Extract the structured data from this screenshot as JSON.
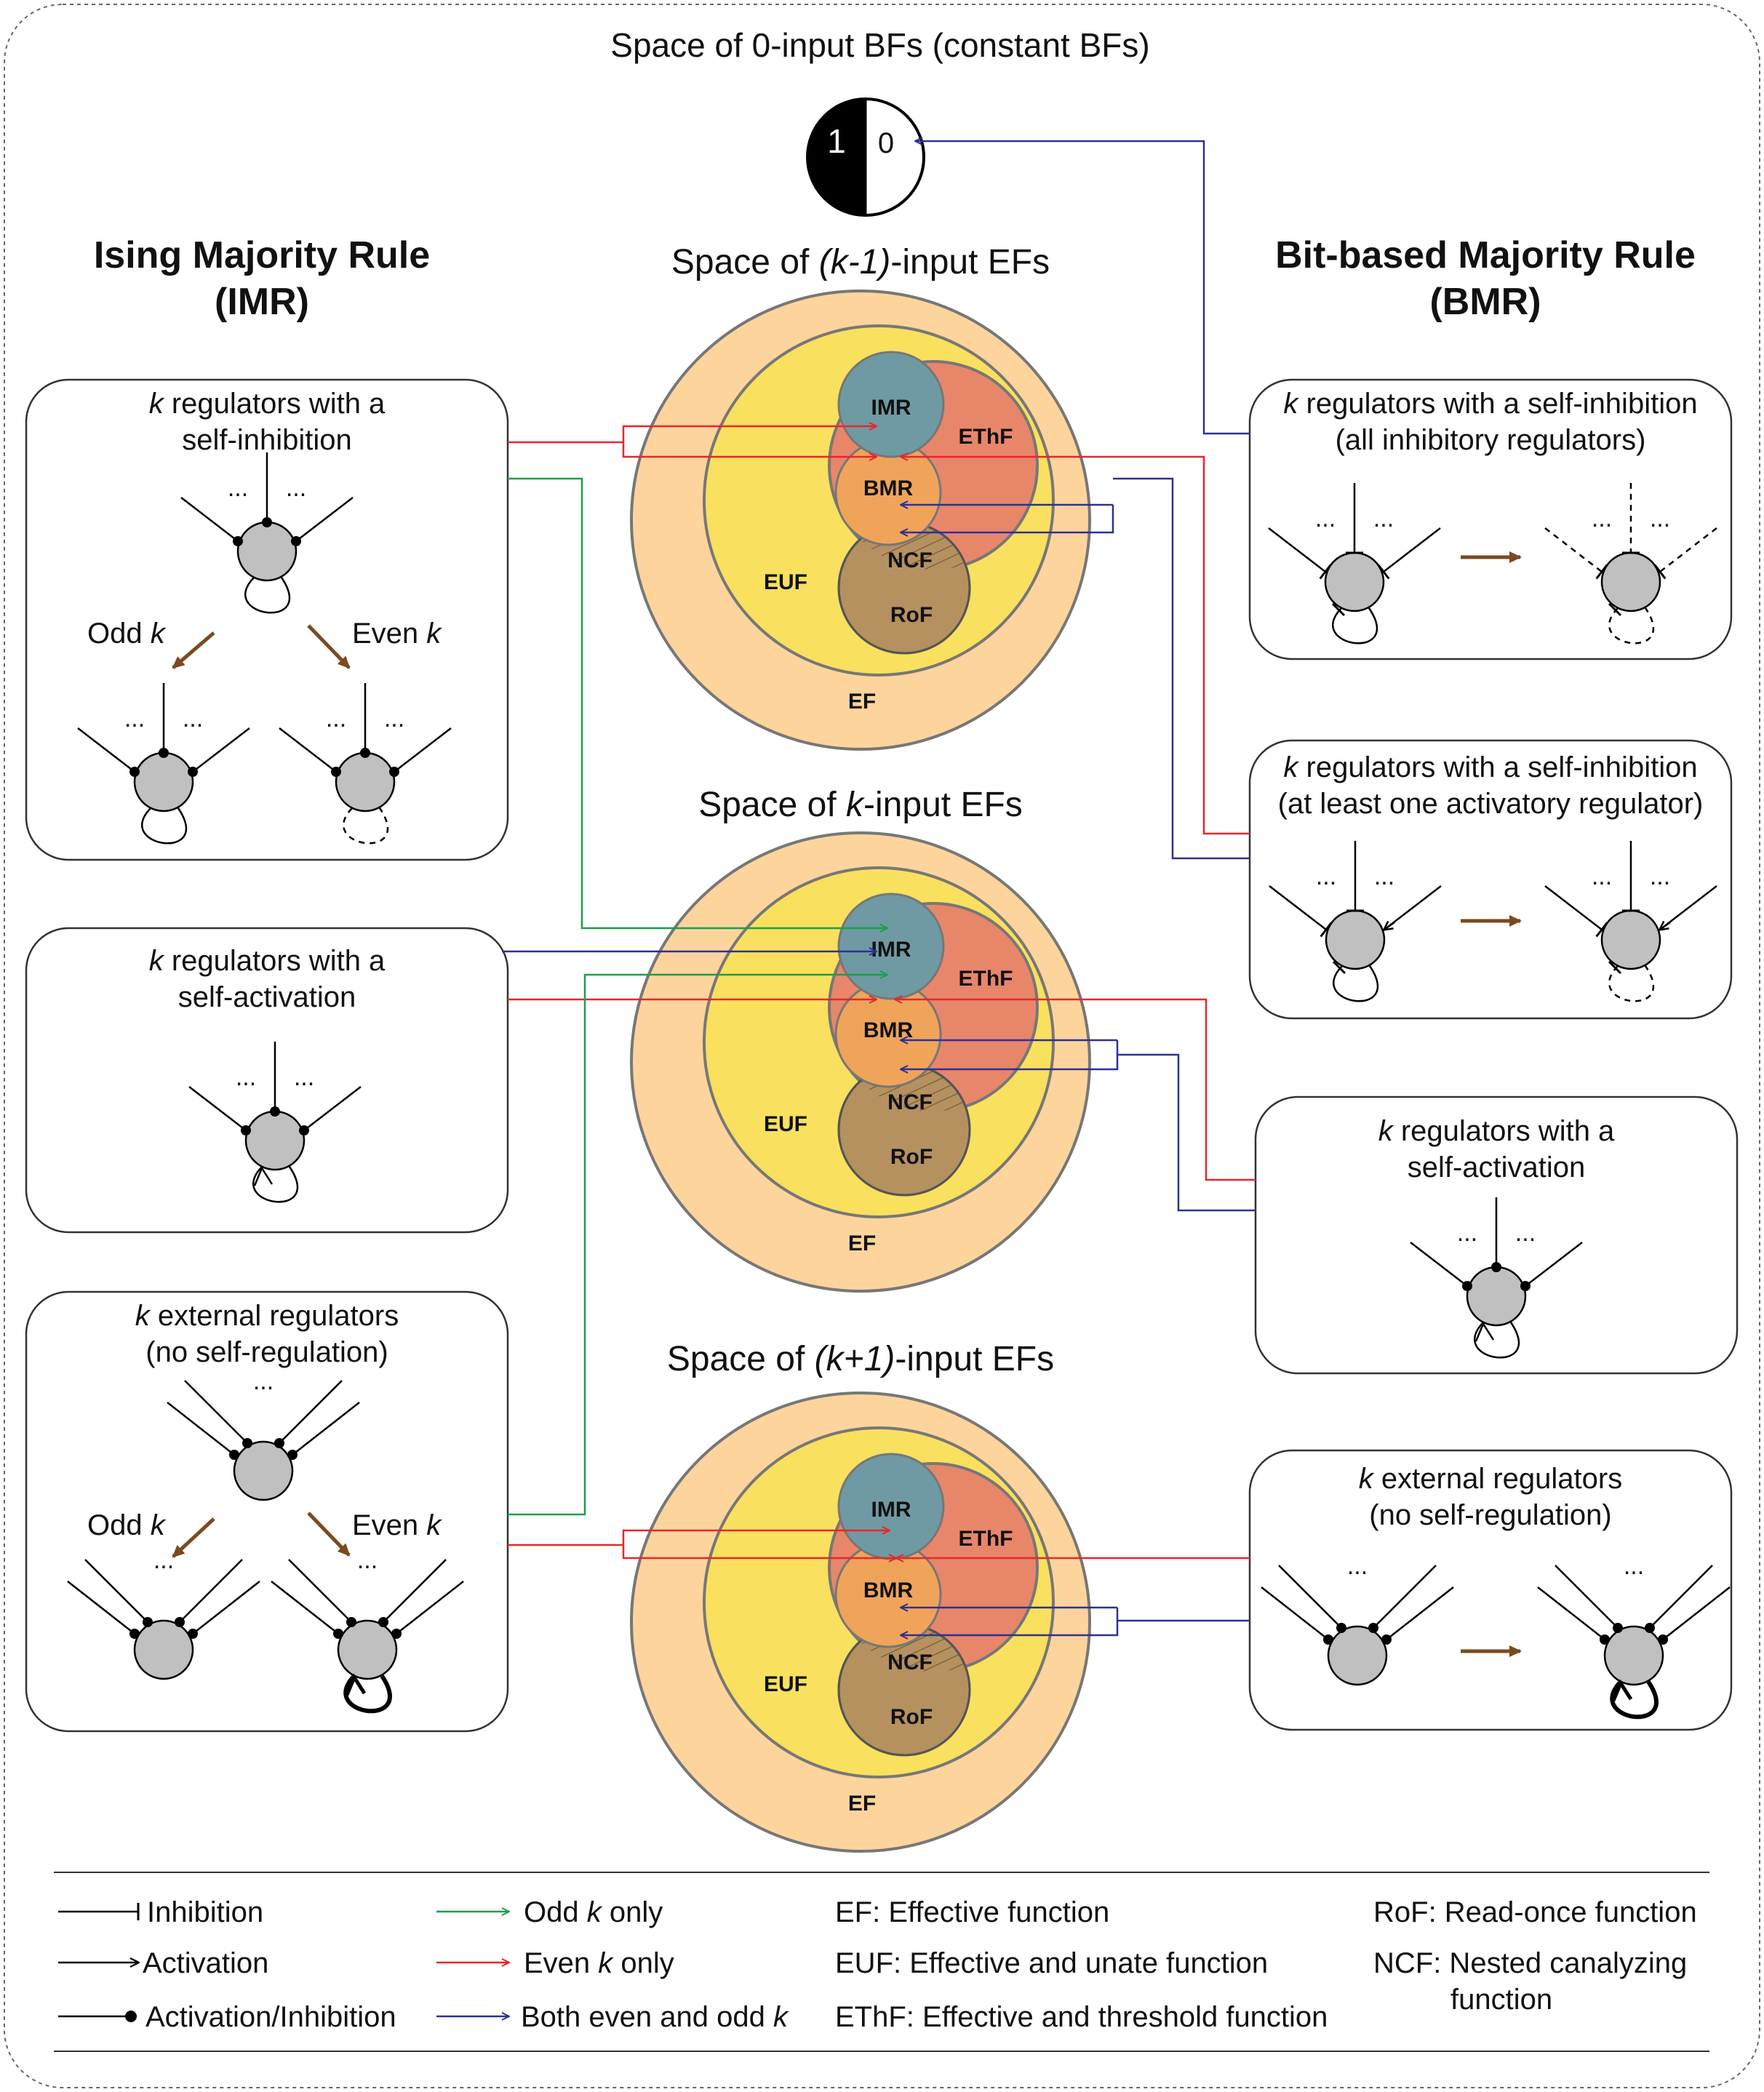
{
  "top": {
    "title": "Space of 0-input BFs (constant BFs)",
    "one": "1",
    "zero": "0"
  },
  "columns": {
    "imr": {
      "line1": "Ising Majority Rule",
      "line2": "(IMR)"
    },
    "bmr": {
      "line1": "Bit-based Majority Rule",
      "line2": "(BMR)"
    }
  },
  "spaces": [
    {
      "pre": "Space of ",
      "italic": "(k-1)",
      "post": "-input EFs"
    },
    {
      "pre": "Space of ",
      "italic": "k",
      "post": "-input EFs"
    },
    {
      "pre": "Space of ",
      "italic": "(k+1)",
      "post": "-input EFs"
    }
  ],
  "venn_labels": {
    "imr": "IMR",
    "bmr": "BMR",
    "ncf": "NCF",
    "rof": "RoF",
    "ethf": "EThF",
    "euf": "EUF",
    "ef": "EF"
  },
  "left_boxes": {
    "box1": {
      "line1_italic": "k",
      "line1_rest": " regulators with a",
      "line2": "self-inhibition"
    },
    "box2": {
      "line1_italic": "k",
      "line1_rest": " regulators with a",
      "line2": "self-activation"
    },
    "box3": {
      "line1_italic": "k",
      "line1_rest": " external regulators",
      "line2": "(no self-regulation)"
    }
  },
  "right_boxes": {
    "box1": {
      "line1_italic": "k",
      "line1_rest": " regulators with a self-inhibition",
      "line2": "(all inhibitory regulators)"
    },
    "box2": {
      "line1_italic": "k",
      "line1_rest": " regulators with a self-inhibition",
      "line2": "(at least one activatory regulator)"
    },
    "box3": {
      "line1_italic": "k",
      "line1_rest": " regulators with a",
      "line2": "self-activation"
    },
    "box4": {
      "line1_italic": "k",
      "line1_rest": " external regulators",
      "line2": "(no self-regulation)"
    }
  },
  "odd_even": {
    "odd": "Odd ",
    "even": "Even ",
    "k": "k"
  },
  "dots": "...",
  "legend": {
    "inhibition": "Inhibition",
    "activation": "Activation",
    "act_inh": "Activation/Inhibition",
    "odd_pre": "Odd ",
    "odd_k": "k",
    "odd_post": " only",
    "even_pre": "Even ",
    "even_k": "k",
    "even_post": " only",
    "both_pre": "Both even and odd ",
    "both_k": "k",
    "ef": "EF: Effective function",
    "euf": "EUF: Effective and unate function",
    "ethf": "EThF: Effective and threshold function",
    "rof": "RoF: Read-once function",
    "ncf1": "NCF: Nested canalyzing",
    "ncf2": "function"
  },
  "colors": {
    "ef": "#fdd49c",
    "euf": "#f9e05e",
    "ethf": "#e8866a",
    "imr": "#6f9aa3",
    "bmr": "#f0a45a",
    "ncf": "#b5915f",
    "node": "#c0c0c0",
    "red": "#e8262c",
    "green": "#1aa049",
    "blue": "#2e3192",
    "brown": "#7b4a1f"
  }
}
